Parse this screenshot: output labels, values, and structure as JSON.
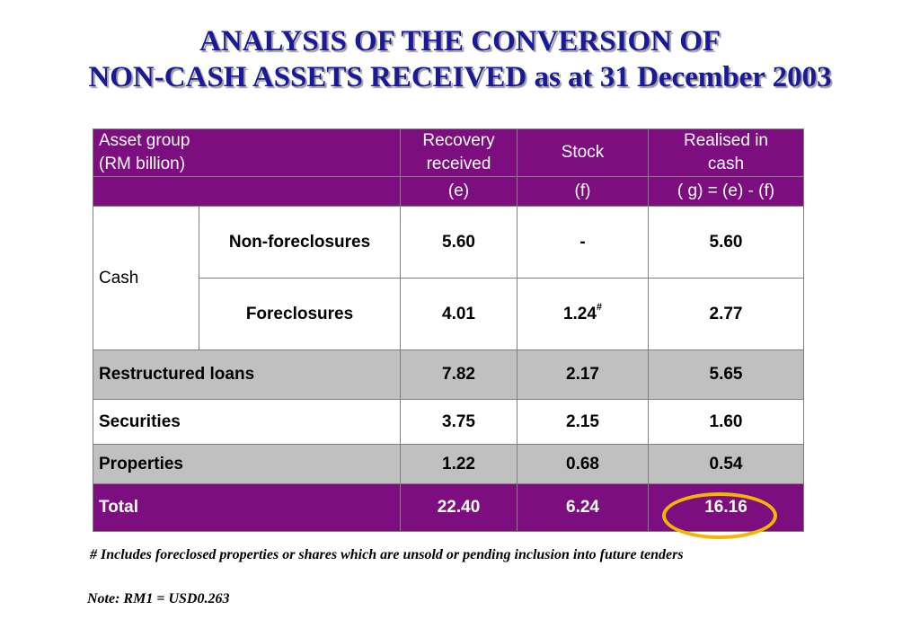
{
  "title": {
    "line1": "ANALYSIS OF THE CONVERSION OF",
    "line2": "NON-CASH ASSETS RECEIVED as at 31 December 2003"
  },
  "table": {
    "header": {
      "asset_group_line1": "Asset group",
      "asset_group_line2": "(RM billion)",
      "recovery_line1": "Recovery",
      "recovery_line2": "received",
      "stock": "Stock",
      "realised_line1": "Realised in",
      "realised_line2": "cash",
      "formula_e": "(e)",
      "formula_f": "(f)",
      "formula_g": "( g) = (e) - (f)"
    },
    "cash": {
      "group_label": "Cash",
      "rows": [
        {
          "label": "Non-foreclosures",
          "recovery": "5.60",
          "stock": "-",
          "stock_mark": "",
          "realised": "5.60"
        },
        {
          "label": "Foreclosures",
          "recovery": "4.01",
          "stock": "1.24",
          "stock_mark": "#",
          "realised": "2.77"
        }
      ]
    },
    "rows": [
      {
        "label": "Restructured  loans",
        "recovery": "7.82",
        "stock": "2.17",
        "realised": "5.65"
      },
      {
        "label": "Securities",
        "recovery": "3.75",
        "stock": "2.15",
        "realised": "1.60"
      },
      {
        "label": "Properties",
        "recovery": "1.22",
        "stock": "0.68",
        "realised": "0.54"
      }
    ],
    "total": {
      "label": "Total",
      "recovery": "22.40",
      "stock": "6.24",
      "realised": "16.16"
    }
  },
  "footnote": "# Includes foreclosed properties or shares which are unsold or pending inclusion into future tenders",
  "note": "Note: RM1 = USD0.263",
  "colors": {
    "header_purple": "#7d0e80",
    "title_blue": "#1a1a99",
    "shaded_row": "#c0c0c0",
    "highlight_circle": "#f2b800"
  }
}
